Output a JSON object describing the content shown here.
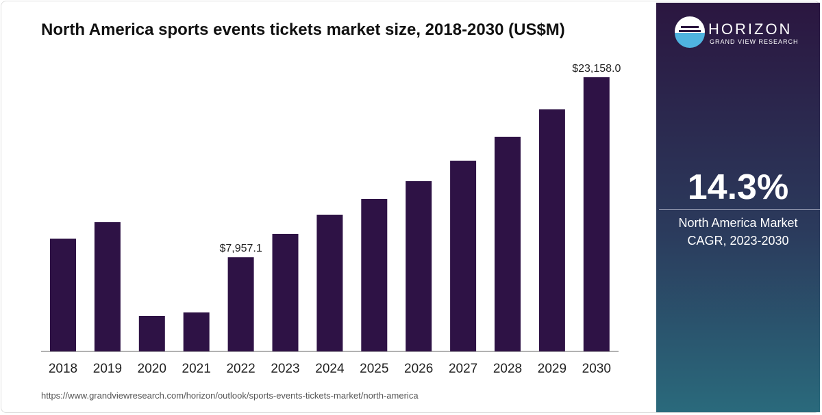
{
  "chart_data": {
    "type": "bar",
    "title": "North America sports events tickets market size, 2018-2030 (US$M)",
    "categories": [
      "2018",
      "2019",
      "2020",
      "2021",
      "2022",
      "2023",
      "2024",
      "2025",
      "2026",
      "2027",
      "2028",
      "2029",
      "2030"
    ],
    "values": [
      9529,
      10915,
      3003,
      3292,
      7957.1,
      9933,
      11550,
      12878,
      14380,
      16112,
      18134,
      20444,
      23158.0
    ],
    "value_labels": [
      null,
      null,
      null,
      null,
      "$7,957.1",
      null,
      null,
      null,
      null,
      null,
      null,
      null,
      "$23,158.0"
    ],
    "color": "#2e1245"
  },
  "source_url": "https://www.grandviewresearch.com/horizon/outlook/sports-events-tickets-market/north-america",
  "panel": {
    "brand": "HORIZON",
    "sub": "GRAND VIEW RESEARCH",
    "cagr": "14.3%",
    "caption": [
      "North America Market",
      "CAGR, 2023-2030"
    ]
  }
}
